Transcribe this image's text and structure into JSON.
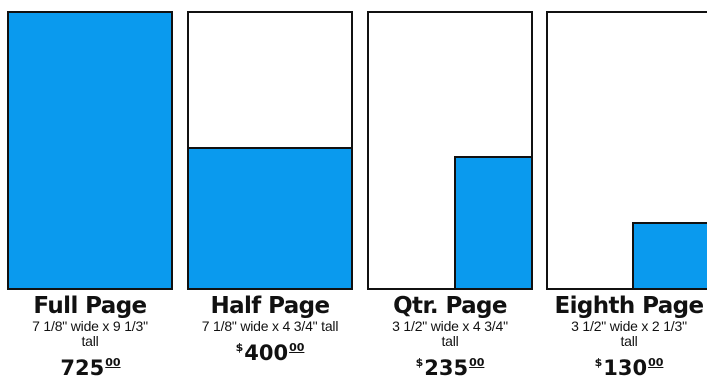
{
  "colors": {
    "fill": "#0A9AEE",
    "border": "#111111",
    "background": "#FFFFFF",
    "text": "#111111"
  },
  "ads": [
    {
      "name": "Full Page",
      "size": "7 1/8\" wide x 9 1/3\" tall",
      "price_dollar": "",
      "price_main": "725",
      "price_cents": "00",
      "fill_fraction": 1.0
    },
    {
      "name": "Half Page",
      "size": "7 1/8\" wide x 4 3/4\" tall",
      "price_dollar": "$",
      "price_main": "400",
      "price_cents": "00",
      "fill_fraction": 0.5
    },
    {
      "name": "Qtr. Page",
      "size": "3 1/2\" wide x 4 3/4\" tall",
      "price_dollar": "$",
      "price_main": "235",
      "price_cents": "00",
      "fill_fraction": 0.25
    },
    {
      "name": "Eighth Page",
      "size": "3 1/2\" wide x 2 1/3\" tall",
      "price_dollar": "$",
      "price_main": "130",
      "price_cents": "00",
      "fill_fraction": 0.125
    }
  ]
}
